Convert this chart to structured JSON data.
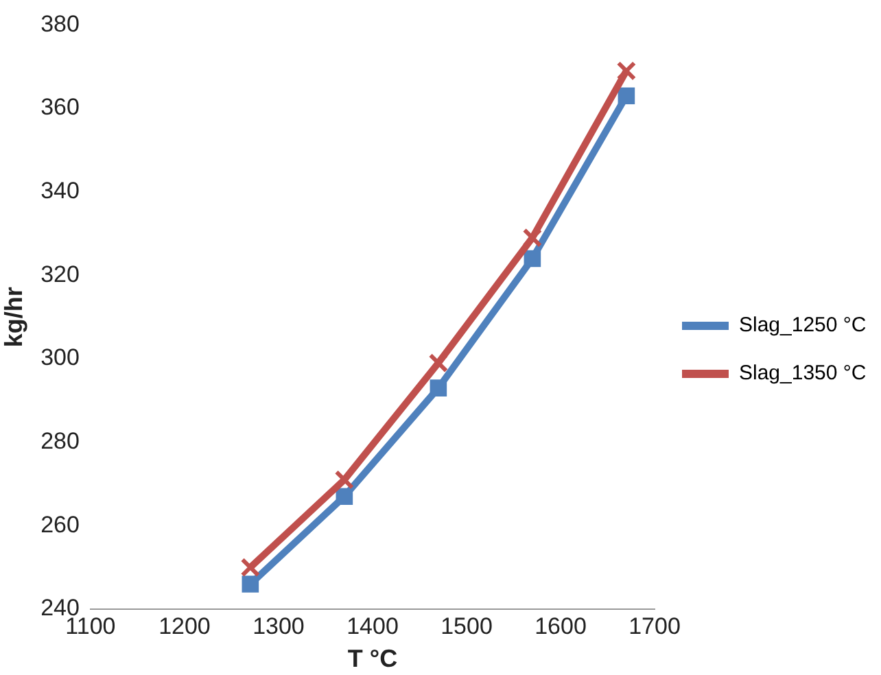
{
  "chart_data": {
    "type": "line",
    "xlabel": "T °C",
    "ylabel": "kg/hr",
    "x": [
      1270,
      1370,
      1470,
      1570,
      1670
    ],
    "series": [
      {
        "name": "Slag_1250 °C",
        "color": "#4f81bd",
        "marker": "square",
        "values": [
          246,
          267,
          293,
          324,
          363
        ]
      },
      {
        "name": "Slag_1350 °C",
        "color": "#c0504d",
        "marker": "cross",
        "values": [
          250,
          271,
          299,
          329,
          369
        ]
      }
    ],
    "xlim": [
      1100,
      1700
    ],
    "xticks": [
      1100,
      1200,
      1300,
      1400,
      1500,
      1600,
      1700
    ],
    "ylim": [
      240,
      380
    ],
    "yticks": [
      240,
      260,
      280,
      300,
      320,
      340,
      360,
      380
    ],
    "grid": false,
    "legend": "right"
  }
}
